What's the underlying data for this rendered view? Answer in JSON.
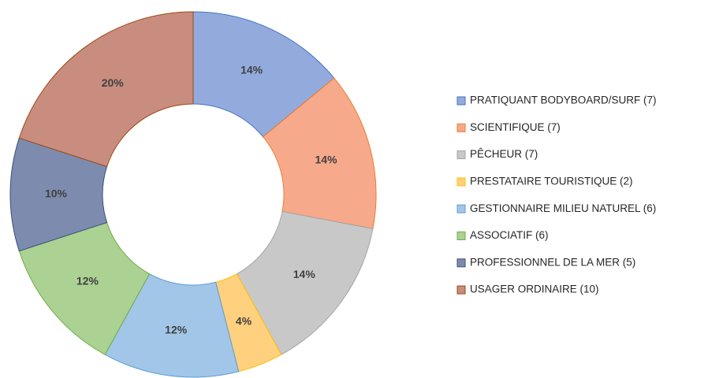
{
  "chart_data": {
    "type": "donut",
    "categories": [
      "PRATIQUANT BODYBOARD/SURF (7)",
      "SCIENTIFIQUE (7)",
      "PÊCHEUR (7)",
      "PRESTATAIRE TOURISTIQUE (2)",
      "GESTIONNAIRE MILIEU NATUREL (6)",
      "ASSOCIATIF (6)",
      "PROFESSIONNEL DE LA MER (5)",
      "USAGER ORDINAIRE (10)"
    ],
    "values": [
      14,
      14,
      14,
      4,
      12,
      12,
      10,
      20
    ],
    "value_labels": [
      "14%",
      "14%",
      "14%",
      "4%",
      "12%",
      "12%",
      "10%",
      "20%"
    ],
    "colors": [
      "#93abdc",
      "#f7a98b",
      "#c8c8c8",
      "#ffd07e",
      "#a2c6e8",
      "#abd193",
      "#7d8cae",
      "#c98d80"
    ],
    "stroke_colors": [
      "#4472c4",
      "#ed7d31",
      "#a5a5a5",
      "#ffc000",
      "#5b9bd5",
      "#70ad47",
      "#3a4f7a",
      "#9e480e"
    ],
    "legend": "right"
  }
}
